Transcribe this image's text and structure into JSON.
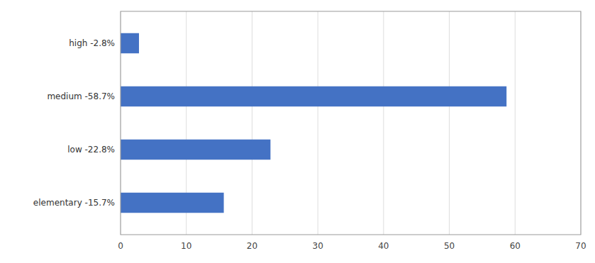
{
  "chart_data": {
    "type": "bar",
    "orientation": "horizontal",
    "categories": [
      "elementary -15.7%",
      "low -22.8%",
      "medium -58.7%",
      "high -2.8%"
    ],
    "values": [
      15.7,
      22.8,
      58.7,
      2.8
    ],
    "color": "#4472C4",
    "xlim": [
      0,
      70
    ],
    "xticks": [
      0,
      10,
      20,
      30,
      40,
      50,
      60,
      70
    ],
    "grid": true
  }
}
